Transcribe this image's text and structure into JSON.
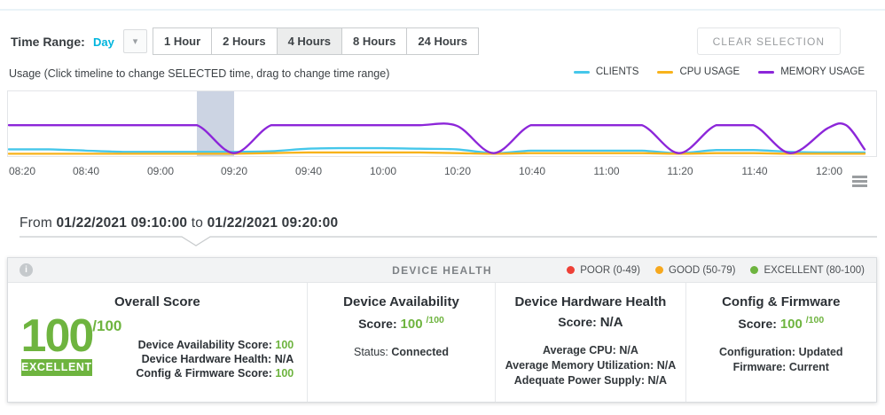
{
  "icons": {
    "info": "i",
    "dropdown_arrow": "▾"
  },
  "time_range": {
    "label": "Time Range:",
    "selected": "Day",
    "buttons": [
      "1 Hour",
      "2 Hours",
      "4 Hours",
      "8 Hours",
      "24 Hours"
    ],
    "active_button": "4 Hours",
    "clear_button": "CLEAR SELECTION"
  },
  "usage": {
    "label": "Usage (Click timeline to change SELECTED time, drag to change time range)",
    "legend": [
      {
        "name": "CLIENTS",
        "color": "#45c7ea"
      },
      {
        "name": "CPU USAGE",
        "color": "#f8b31b"
      },
      {
        "name": "MEMORY USAGE",
        "color": "#8c26d9"
      }
    ]
  },
  "chart_data": {
    "type": "line",
    "title": "Usage timeline",
    "x_ticks": [
      "08:20",
      "08:40",
      "09:00",
      "09:20",
      "09:40",
      "10:00",
      "10:20",
      "10:40",
      "11:00",
      "11:20",
      "11:40",
      "12:00"
    ],
    "x": [
      "08:20",
      "08:30",
      "08:40",
      "08:50",
      "09:00",
      "09:10",
      "09:20",
      "09:30",
      "09:40",
      "09:50",
      "10:00",
      "10:10",
      "10:20",
      "10:30",
      "10:40",
      "10:50",
      "11:00",
      "11:10",
      "11:20",
      "11:30",
      "11:40",
      "11:50",
      "12:00",
      "12:05",
      "12:10"
    ],
    "series": [
      {
        "name": "CLIENTS",
        "color": "#45c7ea",
        "values": [
          8,
          8,
          6,
          4,
          4,
          4,
          4,
          5,
          9,
          10,
          10,
          9,
          8,
          2,
          6,
          6,
          6,
          6,
          2,
          7,
          7,
          4,
          3,
          3,
          3
        ]
      },
      {
        "name": "CPU USAGE",
        "color": "#f8b31b",
        "values": [
          1,
          1,
          1,
          1,
          1,
          1,
          1,
          2,
          3,
          3,
          3,
          3,
          2,
          1,
          2,
          2,
          2,
          2,
          1,
          2,
          2,
          1,
          1,
          1,
          1
        ]
      },
      {
        "name": "MEMORY USAGE",
        "color": "#8c26d9",
        "values": [
          47,
          47,
          47,
          47,
          47,
          47,
          2,
          47,
          47,
          47,
          47,
          47,
          46,
          2,
          47,
          47,
          47,
          47,
          2,
          47,
          47,
          2,
          42,
          47,
          8
        ]
      }
    ],
    "y_axis_visible": false,
    "units": "relative usage (no y-axis labels shown)",
    "grid": false,
    "legend_position": "top-right",
    "selected_band": {
      "start": "09:10",
      "end": "09:20"
    }
  },
  "selection": {
    "prefix": "From",
    "from": "01/22/2021 09:10:00",
    "connector": "to",
    "to": "01/22/2021 09:20:00"
  },
  "device_health": {
    "title": "DEVICE HEALTH",
    "legend": [
      {
        "label": "POOR (0-49)",
        "color": "#ee4037"
      },
      {
        "label": "GOOD (50-79)",
        "color": "#f6a81e"
      },
      {
        "label": "EXCELLENT (80-100)",
        "color": "#6eb43f"
      }
    ],
    "overall": {
      "title": "Overall Score",
      "score": "100",
      "denom": "/100",
      "badge": "EXCELLENT",
      "rows": [
        {
          "label": "Device Availability Score:",
          "value": "100"
        },
        {
          "label": "Device Hardware Health:",
          "value": "N/A"
        },
        {
          "label": "Config & Firmware Score:",
          "value": "100"
        }
      ]
    },
    "availability": {
      "title": "Device Availability",
      "score_label": "Score:",
      "score": "100",
      "denom": "/100",
      "rows": [
        {
          "label": "Status:",
          "value": "Connected"
        }
      ]
    },
    "hardware": {
      "title": "Device Hardware Health",
      "score_label": "Score:",
      "score": "N/A",
      "rows": [
        {
          "label": "Average CPU:",
          "value": "N/A"
        },
        {
          "label": "Average Memory Utilization:",
          "value": "N/A"
        },
        {
          "label": "Adequate Power Supply:",
          "value": "N/A"
        }
      ]
    },
    "config": {
      "title": "Config & Firmware",
      "score_label": "Score:",
      "score": "100",
      "denom": "/100",
      "rows": [
        {
          "label": "Configuration:",
          "value": "Updated"
        },
        {
          "label": "Firmware:",
          "value": "Current"
        }
      ]
    }
  }
}
